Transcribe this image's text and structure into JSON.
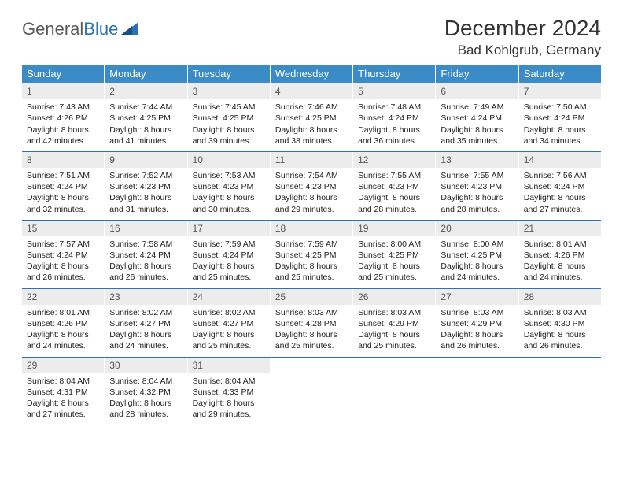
{
  "logo": {
    "text_gray": "General",
    "text_blue": "Blue"
  },
  "title": "December 2024",
  "location": "Bad Kohlgrub, Germany",
  "colors": {
    "header_bg": "#3b8bc6",
    "header_text": "#ffffff",
    "daynum_bg": "#ececec",
    "week_border": "#2d71b8",
    "logo_gray": "#5a5a5a",
    "logo_blue": "#2d71b8"
  },
  "day_headers": [
    "Sunday",
    "Monday",
    "Tuesday",
    "Wednesday",
    "Thursday",
    "Friday",
    "Saturday"
  ],
  "weeks": [
    [
      {
        "n": "1",
        "sr": "7:43 AM",
        "ss": "4:26 PM",
        "dl": "8 hours and 42 minutes."
      },
      {
        "n": "2",
        "sr": "7:44 AM",
        "ss": "4:25 PM",
        "dl": "8 hours and 41 minutes."
      },
      {
        "n": "3",
        "sr": "7:45 AM",
        "ss": "4:25 PM",
        "dl": "8 hours and 39 minutes."
      },
      {
        "n": "4",
        "sr": "7:46 AM",
        "ss": "4:25 PM",
        "dl": "8 hours and 38 minutes."
      },
      {
        "n": "5",
        "sr": "7:48 AM",
        "ss": "4:24 PM",
        "dl": "8 hours and 36 minutes."
      },
      {
        "n": "6",
        "sr": "7:49 AM",
        "ss": "4:24 PM",
        "dl": "8 hours and 35 minutes."
      },
      {
        "n": "7",
        "sr": "7:50 AM",
        "ss": "4:24 PM",
        "dl": "8 hours and 34 minutes."
      }
    ],
    [
      {
        "n": "8",
        "sr": "7:51 AM",
        "ss": "4:24 PM",
        "dl": "8 hours and 32 minutes."
      },
      {
        "n": "9",
        "sr": "7:52 AM",
        "ss": "4:23 PM",
        "dl": "8 hours and 31 minutes."
      },
      {
        "n": "10",
        "sr": "7:53 AM",
        "ss": "4:23 PM",
        "dl": "8 hours and 30 minutes."
      },
      {
        "n": "11",
        "sr": "7:54 AM",
        "ss": "4:23 PM",
        "dl": "8 hours and 29 minutes."
      },
      {
        "n": "12",
        "sr": "7:55 AM",
        "ss": "4:23 PM",
        "dl": "8 hours and 28 minutes."
      },
      {
        "n": "13",
        "sr": "7:55 AM",
        "ss": "4:23 PM",
        "dl": "8 hours and 28 minutes."
      },
      {
        "n": "14",
        "sr": "7:56 AM",
        "ss": "4:24 PM",
        "dl": "8 hours and 27 minutes."
      }
    ],
    [
      {
        "n": "15",
        "sr": "7:57 AM",
        "ss": "4:24 PM",
        "dl": "8 hours and 26 minutes."
      },
      {
        "n": "16",
        "sr": "7:58 AM",
        "ss": "4:24 PM",
        "dl": "8 hours and 26 minutes."
      },
      {
        "n": "17",
        "sr": "7:59 AM",
        "ss": "4:24 PM",
        "dl": "8 hours and 25 minutes."
      },
      {
        "n": "18",
        "sr": "7:59 AM",
        "ss": "4:25 PM",
        "dl": "8 hours and 25 minutes."
      },
      {
        "n": "19",
        "sr": "8:00 AM",
        "ss": "4:25 PM",
        "dl": "8 hours and 25 minutes."
      },
      {
        "n": "20",
        "sr": "8:00 AM",
        "ss": "4:25 PM",
        "dl": "8 hours and 24 minutes."
      },
      {
        "n": "21",
        "sr": "8:01 AM",
        "ss": "4:26 PM",
        "dl": "8 hours and 24 minutes."
      }
    ],
    [
      {
        "n": "22",
        "sr": "8:01 AM",
        "ss": "4:26 PM",
        "dl": "8 hours and 24 minutes."
      },
      {
        "n": "23",
        "sr": "8:02 AM",
        "ss": "4:27 PM",
        "dl": "8 hours and 24 minutes."
      },
      {
        "n": "24",
        "sr": "8:02 AM",
        "ss": "4:27 PM",
        "dl": "8 hours and 25 minutes."
      },
      {
        "n": "25",
        "sr": "8:03 AM",
        "ss": "4:28 PM",
        "dl": "8 hours and 25 minutes."
      },
      {
        "n": "26",
        "sr": "8:03 AM",
        "ss": "4:29 PM",
        "dl": "8 hours and 25 minutes."
      },
      {
        "n": "27",
        "sr": "8:03 AM",
        "ss": "4:29 PM",
        "dl": "8 hours and 26 minutes."
      },
      {
        "n": "28",
        "sr": "8:03 AM",
        "ss": "4:30 PM",
        "dl": "8 hours and 26 minutes."
      }
    ],
    [
      {
        "n": "29",
        "sr": "8:04 AM",
        "ss": "4:31 PM",
        "dl": "8 hours and 27 minutes."
      },
      {
        "n": "30",
        "sr": "8:04 AM",
        "ss": "4:32 PM",
        "dl": "8 hours and 28 minutes."
      },
      {
        "n": "31",
        "sr": "8:04 AM",
        "ss": "4:33 PM",
        "dl": "8 hours and 29 minutes."
      },
      null,
      null,
      null,
      null
    ]
  ],
  "labels": {
    "sunrise": "Sunrise:",
    "sunset": "Sunset:",
    "daylight": "Daylight:"
  }
}
